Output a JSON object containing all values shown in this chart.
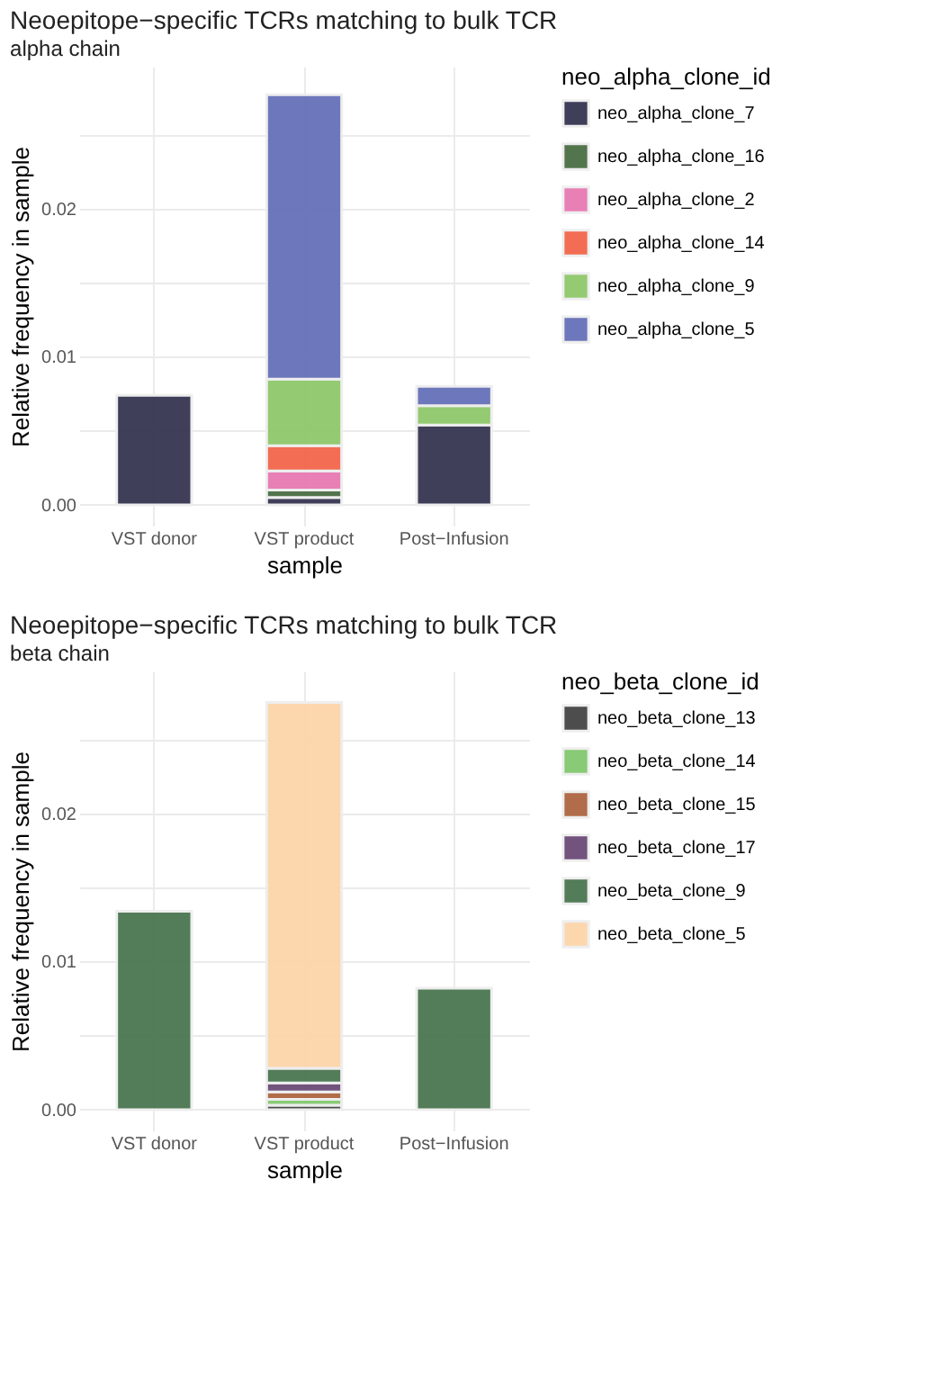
{
  "chart_data": [
    {
      "type": "bar",
      "stacked": true,
      "title": "Neoepitope−specific TCRs matching to bulk TCR",
      "subtitle": "alpha chain",
      "xlabel": "sample",
      "ylabel": "Relative frequency in sample",
      "legend_title": "neo_alpha_clone_id",
      "legend": "right",
      "grid": true,
      "categories": [
        "VST donor",
        "VST product",
        "Post−Infusion"
      ],
      "ylim": [
        -0.0014,
        0.0296
      ],
      "yticks": [
        {
          "value": 0,
          "label": "0.00"
        },
        {
          "value": 0.005,
          "label": null
        },
        {
          "value": 0.01,
          "label": "0.01"
        },
        {
          "value": 0.015,
          "label": null
        },
        {
          "value": 0.02,
          "label": "0.02"
        },
        {
          "value": 0.025,
          "label": null
        }
      ],
      "series": [
        {
          "name": "neo_alpha_clone_7",
          "color": "#363552",
          "values": [
            0.0074,
            0.0005,
            0.0054
          ]
        },
        {
          "name": "neo_alpha_clone_16",
          "color": "#4a6e44",
          "values": [
            null,
            0.0005,
            null
          ]
        },
        {
          "name": "neo_alpha_clone_2",
          "color": "#e779b2",
          "values": [
            null,
            0.0013,
            null
          ]
        },
        {
          "name": "neo_alpha_clone_14",
          "color": "#f2664a",
          "values": [
            null,
            0.0017,
            null
          ]
        },
        {
          "name": "neo_alpha_clone_9",
          "color": "#8fc86b",
          "values": [
            null,
            0.0045,
            0.0013
          ]
        },
        {
          "name": "neo_alpha_clone_5",
          "color": "#6670b8",
          "values": [
            null,
            0.0192,
            0.0013
          ]
        }
      ]
    },
    {
      "type": "bar",
      "stacked": true,
      "title": "Neoepitope−specific TCRs matching to bulk TCR",
      "subtitle": "beta chain",
      "xlabel": "sample",
      "ylabel": "Relative frequency in sample",
      "legend_title": "neo_beta_clone_id",
      "legend": "right",
      "grid": true,
      "categories": [
        "VST donor",
        "VST product",
        "Post−Infusion"
      ],
      "ylim": [
        -0.0014,
        0.0296
      ],
      "yticks": [
        {
          "value": 0,
          "label": "0.00"
        },
        {
          "value": 0.005,
          "label": null
        },
        {
          "value": 0.01,
          "label": "0.01"
        },
        {
          "value": 0.015,
          "label": null
        },
        {
          "value": 0.02,
          "label": "0.02"
        },
        {
          "value": 0.025,
          "label": null
        }
      ],
      "series": [
        {
          "name": "neo_beta_clone_13",
          "color": "#444444",
          "values": [
            null,
            0.0003,
            null
          ]
        },
        {
          "name": "neo_beta_clone_14",
          "color": "#82c86e",
          "values": [
            null,
            0.0004,
            null
          ]
        },
        {
          "name": "neo_beta_clone_15",
          "color": "#ad6540",
          "values": [
            null,
            0.0005,
            null
          ]
        },
        {
          "name": "neo_beta_clone_17",
          "color": "#6b4a78",
          "values": [
            null,
            0.0006,
            null
          ]
        },
        {
          "name": "neo_beta_clone_9",
          "color": "#4a7651",
          "values": [
            0.0134,
            0.001,
            0.0082
          ]
        },
        {
          "name": "neo_beta_clone_5",
          "color": "#fcd5a9",
          "values": [
            null,
            0.0247,
            null
          ]
        }
      ]
    }
  ]
}
